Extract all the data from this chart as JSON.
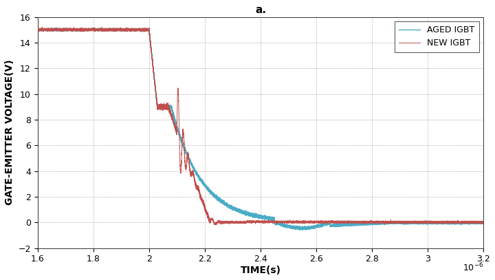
{
  "title": "a.",
  "xlabel": "TIME(s)",
  "ylabel": "GATE-EMITTER VOLTAGE(V)",
  "xlim": [
    1.6e-06,
    3.2e-06
  ],
  "ylim": [
    -2,
    16
  ],
  "yticks": [
    -2,
    0,
    2,
    4,
    6,
    8,
    10,
    12,
    14,
    16
  ],
  "xticks": [
    1.6e-06,
    1.8e-06,
    2e-06,
    2.2e-06,
    2.4e-06,
    2.6e-06,
    2.8e-06,
    3e-06,
    3.2e-06
  ],
  "xtick_labels": [
    "1.6",
    "1.8",
    "2",
    "2.2",
    "2.4",
    "2.6",
    "2.8",
    "3",
    "3.2"
  ],
  "new_color": "#c0504d",
  "aged_color": "#4bacc6",
  "legend_new": "NEW IGBT",
  "legend_aged": "AGED IGBT",
  "bg_color": "#ffffff",
  "grid_color": "#888888",
  "title_fontsize": 11,
  "label_fontsize": 10,
  "tick_fontsize": 9
}
